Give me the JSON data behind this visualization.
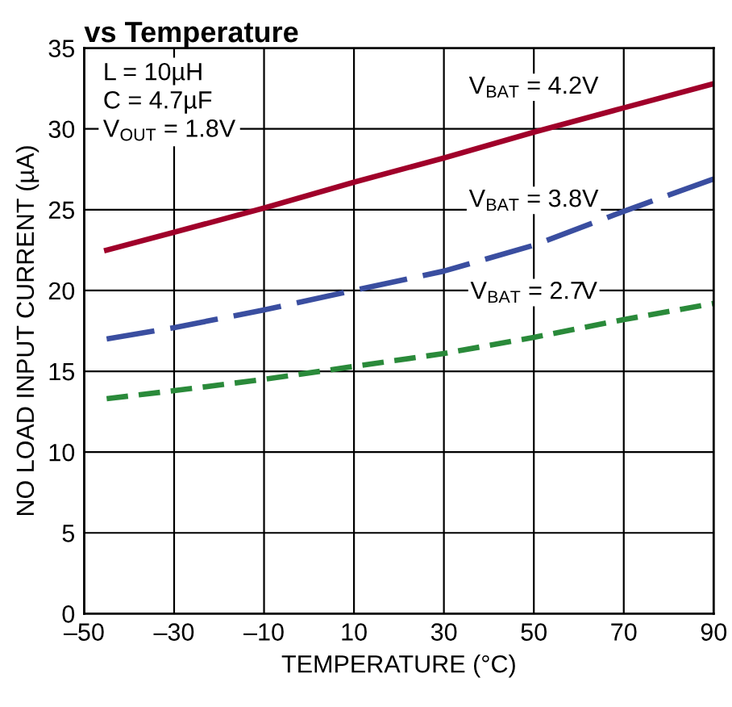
{
  "chart_data": {
    "type": "line",
    "title": "vs Temperature",
    "xlabel": "TEMPERATURE (°C)",
    "ylabel": "NO LOAD INPUT CURRENT (µA)",
    "x": [
      -45,
      -30,
      -10,
      10,
      30,
      50,
      70,
      90
    ],
    "series": [
      {
        "name": "V$_{BAT}$ = 4.2V",
        "color": "#a0002a",
        "line_style": "solid",
        "values": [
          22.5,
          23.6,
          25.1,
          26.7,
          28.2,
          29.8,
          31.3,
          32.8
        ]
      },
      {
        "name": "V$_{BAT}$ = 3.8V",
        "color": "#3a4ea0",
        "line_style": "dashed",
        "values": [
          17.0,
          17.7,
          18.8,
          20.0,
          21.2,
          22.8,
          24.9,
          26.9
        ]
      },
      {
        "name": "V$_{BAT}$ = 2.7V",
        "color": "#2a8a3a",
        "line_style": "dotted",
        "values": [
          13.3,
          13.8,
          14.5,
          15.3,
          16.1,
          17.1,
          18.2,
          19.2
        ]
      }
    ],
    "xlim": [
      -50,
      90
    ],
    "xticks": [
      {
        "value": -50,
        "label": "–50"
      },
      {
        "value": -30,
        "label": "–30"
      },
      {
        "value": -10,
        "label": "–10"
      },
      10,
      30,
      50,
      70,
      90
    ],
    "ylim": [
      0,
      35
    ],
    "yticks": [
      0,
      5,
      10,
      15,
      20,
      25,
      30,
      35
    ],
    "grid": true,
    "marker": "none",
    "annotations": [
      "L = 10µH\nC = 4.7µF\nV$_{OUT}$ = 1.8V"
    ]
  }
}
